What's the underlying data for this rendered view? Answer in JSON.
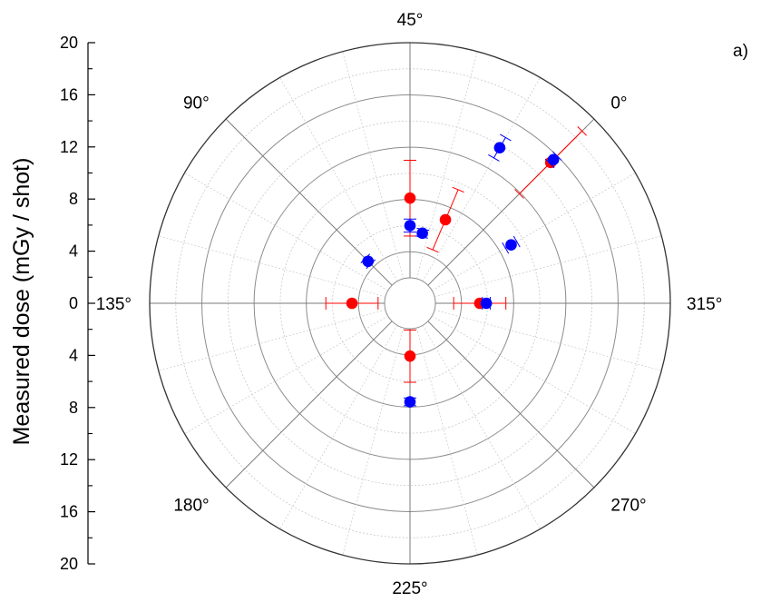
{
  "chart_data": {
    "type": "scatter",
    "projection": "polar",
    "panel_label": "a)",
    "ylabel": "Measured dose (mGy / shot)",
    "radial_axis": {
      "range": [
        0,
        20
      ],
      "ticks": [
        20,
        16,
        12,
        8,
        4,
        0,
        4,
        8,
        12,
        16,
        20
      ],
      "major_step": 4,
      "minor_step": 2,
      "inner_hole_dose": 2
    },
    "angular_axis": {
      "labels": [
        "0°",
        "45°",
        "90°",
        "135°",
        "180°",
        "225°",
        "270°",
        "315°"
      ],
      "label_angles_deg": [
        45,
        90,
        135,
        180,
        225,
        270,
        315,
        0
      ],
      "zero_direction": "upper-right",
      "direction": "counterclockwise"
    },
    "grid": true,
    "series": [
      {
        "color": "#ff0000",
        "points": [
          {
            "angle": 0,
            "dose": 15.3,
            "err": 3.4
          },
          {
            "angle": 45,
            "dose": 8.1,
            "err": 2.9
          },
          {
            "angle": 45,
            "dose": 11.0,
            "err": 0
          },
          {
            "angle": 135,
            "dose": 4.5,
            "err": 2.0
          },
          {
            "angle": 225,
            "dose": 4.1,
            "err": 2.0
          },
          {
            "angle": 315,
            "dose": 5.4,
            "err": 2.0
          },
          {
            "angle": 45,
            "dose": 7.0,
            "err": 2.5,
            "tilted": 22
          }
        ]
      },
      {
        "color": "#0000ff",
        "points": [
          {
            "angle": 0,
            "dose": 15.6,
            "err": 0.4
          },
          {
            "angle": 45,
            "dose": 6.0,
            "err": 0.5
          },
          {
            "angle": 90,
            "dose": 4.6,
            "err": 0.3
          },
          {
            "angle": 225,
            "dose": 7.6,
            "err": 0.3
          },
          {
            "angle": 315,
            "dose": 5.9,
            "err": 0.3
          },
          {
            "angle": 15,
            "dose": 13.8,
            "err": 0.9
          },
          {
            "angle": 345,
            "dose": 9.0,
            "err": 0.5
          },
          {
            "angle": 35,
            "dose": 5.5,
            "err": 0.3
          }
        ]
      }
    ]
  }
}
